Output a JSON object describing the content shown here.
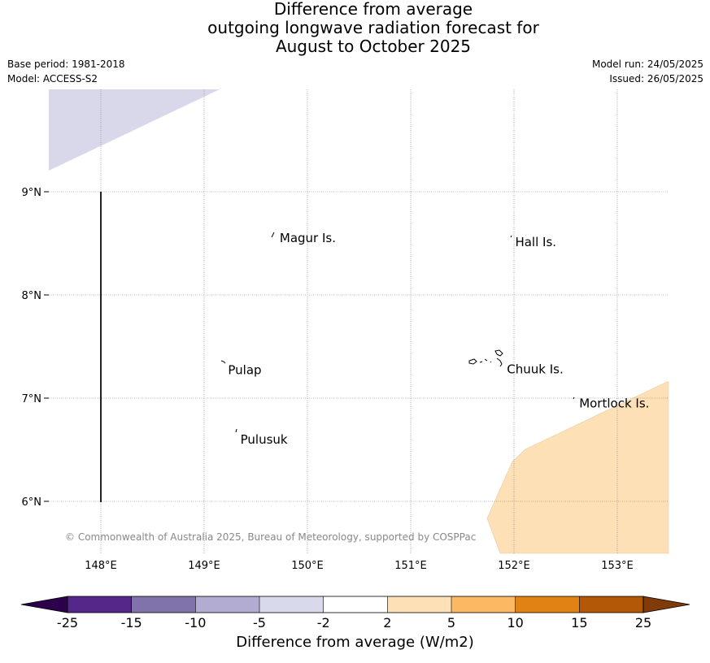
{
  "title": {
    "line1": "Difference from average",
    "line2": "outgoing longwave radiation forecast for",
    "line3": "August to October 2025"
  },
  "meta": {
    "base_period": "Base period: 1981-2018",
    "model": "Model: ACCESS-S2",
    "model_run": "Model run: 24/05/2025",
    "issued": "Issued: 26/05/2025"
  },
  "map": {
    "lon_ticks": [
      {
        "value": 148,
        "label": "148°E"
      },
      {
        "value": 149,
        "label": "149°E"
      },
      {
        "value": 150,
        "label": "150°E"
      },
      {
        "value": 151,
        "label": "151°E"
      },
      {
        "value": 152,
        "label": "152°E"
      },
      {
        "value": 153,
        "label": "153°E"
      }
    ],
    "lat_ticks": [
      {
        "value": 9,
        "label": "9°N"
      },
      {
        "value": 8,
        "label": "8°N"
      },
      {
        "value": 7,
        "label": "7°N"
      },
      {
        "value": 6,
        "label": "6°N"
      }
    ],
    "places": [
      {
        "name": "Magur Is.",
        "lon": 149.7,
        "lat": 8.55
      },
      {
        "name": "Hall Is.",
        "lon": 151.98,
        "lat": 8.51
      },
      {
        "name": "Pulap",
        "lon": 149.2,
        "lat": 7.27
      },
      {
        "name": "Chuuk Is.",
        "lon": 151.9,
        "lat": 7.28
      },
      {
        "name": "Mortlock Is.",
        "lon": 152.6,
        "lat": 6.95
      },
      {
        "name": "Pulusuk",
        "lon": 149.32,
        "lat": 6.6
      }
    ],
    "copyright": "© Commonwealth of Australia 2025, Bureau of Meteorology, supported by COSPPac",
    "anomaly_regions": [
      {
        "category": "-5 to -2",
        "color": "#d8d8ea"
      },
      {
        "category": "2 to 5",
        "color": "#fde0b6"
      }
    ]
  },
  "colorbar": {
    "title": "Difference from average (W/m2)",
    "tick_labels": [
      "-25",
      "-15",
      "-10",
      "-5",
      "-2",
      "2",
      "5",
      "10",
      "15",
      "25"
    ],
    "colors": [
      "#542788",
      "#8073ac",
      "#b2abd2",
      "#d8daeb",
      "#ffffff",
      "#fee0b6",
      "#fdb863",
      "#e08214",
      "#b35806"
    ],
    "extend_low_color": "#2d004b",
    "extend_high_color": "#7f3b08"
  }
}
